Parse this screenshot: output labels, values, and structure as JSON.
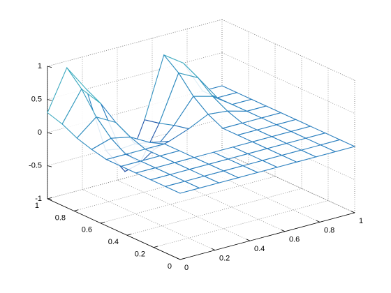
{
  "chart_data": {
    "type": "mesh",
    "x": [
      0,
      0.111,
      0.222,
      0.333,
      0.444,
      0.556,
      0.667,
      0.778,
      0.889,
      1
    ],
    "y": [
      0,
      0.111,
      0.222,
      0.333,
      0.444,
      0.556,
      0.667,
      0.778,
      0.889,
      1
    ],
    "z": [
      [
        0,
        0,
        0,
        0,
        0,
        0,
        0,
        0,
        0,
        0
      ],
      [
        0,
        0,
        0,
        0,
        0,
        0,
        0,
        0,
        0,
        0
      ],
      [
        0,
        0,
        0,
        0,
        0,
        0,
        0,
        0,
        0,
        0
      ],
      [
        0,
        0,
        0,
        0,
        0,
        0,
        0,
        0,
        0,
        0
      ],
      [
        0,
        0,
        0,
        0,
        0,
        0,
        0,
        0,
        0,
        0
      ],
      [
        0,
        0,
        0,
        0,
        0,
        0,
        0,
        0,
        0,
        0
      ],
      [
        0.05,
        0.14,
        0.08,
        -0.08,
        -0.14,
        -0.03,
        0.11,
        0.08,
        0,
        0
      ],
      [
        0.12,
        0.36,
        0.2,
        -0.2,
        -0.36,
        -0.08,
        0.28,
        0.2,
        0,
        0
      ],
      [
        0.23,
        0.68,
        0.38,
        -0.38,
        -0.68,
        -0.15,
        0.53,
        0.38,
        0,
        0
      ],
      [
        0.3,
        0.9,
        0.5,
        -0.5,
        -0.9,
        -0.2,
        0.7,
        0.5,
        0,
        0
      ]
    ],
    "xlim": [
      0,
      1
    ],
    "ylim": [
      0,
      1
    ],
    "zlim": [
      -1,
      1
    ],
    "xticks": [
      0,
      0.2,
      0.4,
      0.6,
      0.8,
      1
    ],
    "yticks": [
      0,
      0.2,
      0.4,
      0.6,
      0.8,
      1
    ],
    "zticks": [
      -1,
      -0.5,
      0,
      0.5,
      1
    ],
    "grid": true,
    "colormap": [
      "#1b2f94",
      "#2a7fbf",
      "#4fd1c0"
    ]
  }
}
